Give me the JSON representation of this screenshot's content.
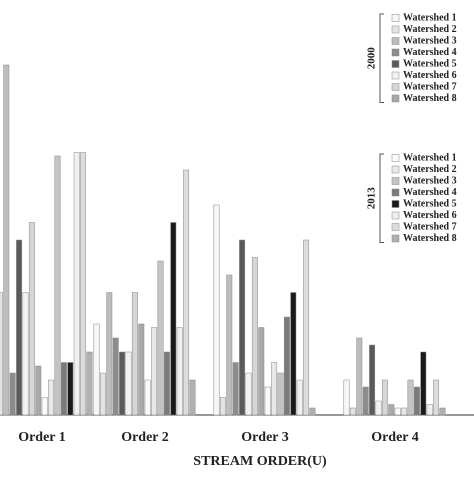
{
  "chart_data": {
    "type": "bar",
    "x_label": "STREAM ORDER(U)",
    "categories": [
      "Order 1",
      "Order 2",
      "Order 3",
      "Order 4"
    ],
    "legend_groups": [
      "2000",
      "2013"
    ],
    "ylim": [
      0,
      100
    ],
    "series": [
      {
        "name": "Watershed 1",
        "color": "#f7f7f7",
        "values": [
          40,
          26,
          60,
          10
        ]
      },
      {
        "name": "Watershed 2",
        "color": "#e3e3e3",
        "values": [
          35,
          12,
          5,
          2
        ]
      },
      {
        "name": "Watershed 3",
        "color": "#bdbdbd",
        "values": [
          100,
          35,
          40,
          22
        ]
      },
      {
        "name": "Watershed 4",
        "color": "#8c8c8c",
        "values": [
          12,
          22,
          15,
          8
        ]
      },
      {
        "name": "Watershed 5",
        "color": "#5a5a5a",
        "values": [
          50,
          18,
          50,
          20
        ]
      },
      {
        "name": "Watershed 6",
        "color": "#f2f2f2",
        "values": [
          35,
          18,
          12,
          4
        ]
      },
      {
        "name": "Watershed 7",
        "color": "#d6d6d6",
        "values": [
          55,
          35,
          45,
          10
        ]
      },
      {
        "name": "Watershed 8",
        "color": "#a9a9a9",
        "values": [
          14,
          26,
          25,
          3
        ]
      },
      {
        "name": "Watershed 1",
        "color": "#fafafa",
        "values": [
          5,
          10,
          8,
          2
        ]
      },
      {
        "name": "Watershed 2",
        "color": "#e8e8e8",
        "values": [
          10,
          25,
          15,
          2
        ]
      },
      {
        "name": "Watershed 3",
        "color": "#c4c4c4",
        "values": [
          74,
          44,
          12,
          10
        ]
      },
      {
        "name": "Watershed 4",
        "color": "#7a7a7a",
        "values": [
          15,
          18,
          28,
          8
        ]
      },
      {
        "name": "Watershed 5",
        "color": "#1a1a1a",
        "values": [
          15,
          55,
          35,
          18
        ]
      },
      {
        "name": "Watershed 6",
        "color": "#efefef",
        "values": [
          75,
          25,
          10,
          3
        ]
      },
      {
        "name": "Watershed 7",
        "color": "#dcdcdc",
        "values": [
          75,
          70,
          50,
          10
        ]
      },
      {
        "name": "Watershed 8",
        "color": "#b0b0b0",
        "values": [
          18,
          10,
          2,
          2
        ]
      }
    ]
  }
}
